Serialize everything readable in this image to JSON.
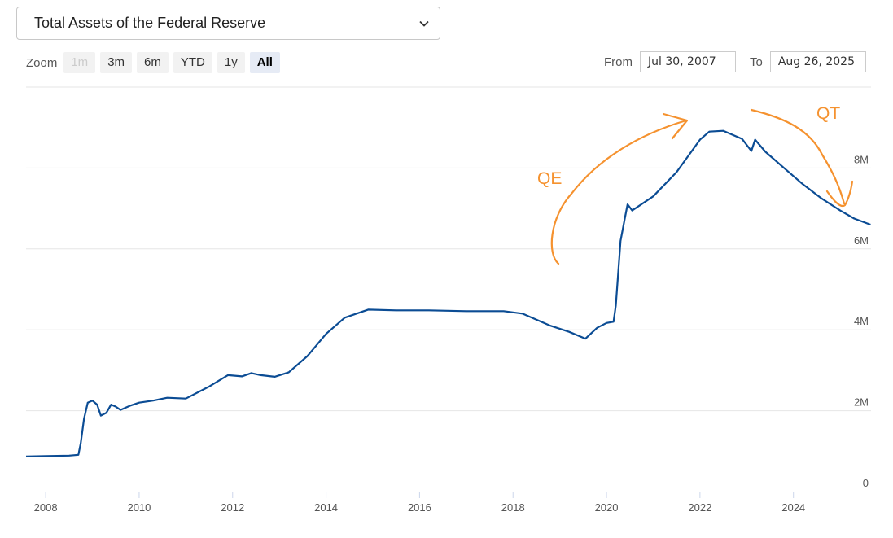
{
  "selector": {
    "value": "Total Assets of the Federal Reserve",
    "icon": "chevron-down-icon"
  },
  "zoom": {
    "label": "Zoom",
    "buttons": [
      {
        "label": "1m",
        "state": "disabled"
      },
      {
        "label": "3m",
        "state": "normal"
      },
      {
        "label": "6m",
        "state": "normal"
      },
      {
        "label": "YTD",
        "state": "normal"
      },
      {
        "label": "1y",
        "state": "normal"
      },
      {
        "label": "All",
        "state": "active"
      }
    ]
  },
  "range": {
    "from_label": "From",
    "from_value": "Jul 30, 2007",
    "to_label": "To",
    "to_value": "Aug 26, 2025"
  },
  "annotations": {
    "qe": "QE",
    "qt": "QT",
    "color": "#f5922f"
  },
  "chart_data": {
    "type": "line",
    "series": [
      {
        "color": "#0b4c94",
        "points": [
          [
            2007.58,
            0.87
          ],
          [
            2008.0,
            0.88
          ],
          [
            2008.5,
            0.89
          ],
          [
            2008.7,
            0.91
          ],
          [
            2008.75,
            1.2
          ],
          [
            2008.82,
            1.8
          ],
          [
            2008.9,
            2.2
          ],
          [
            2009.0,
            2.25
          ],
          [
            2009.1,
            2.15
          ],
          [
            2009.18,
            1.88
          ],
          [
            2009.3,
            1.95
          ],
          [
            2009.4,
            2.15
          ],
          [
            2009.5,
            2.1
          ],
          [
            2009.6,
            2.02
          ],
          [
            2009.8,
            2.12
          ],
          [
            2010.0,
            2.2
          ],
          [
            2010.3,
            2.25
          ],
          [
            2010.6,
            2.32
          ],
          [
            2011.0,
            2.3
          ],
          [
            2011.5,
            2.6
          ],
          [
            2011.9,
            2.88
          ],
          [
            2012.2,
            2.85
          ],
          [
            2012.4,
            2.93
          ],
          [
            2012.6,
            2.88
          ],
          [
            2012.9,
            2.84
          ],
          [
            2013.2,
            2.95
          ],
          [
            2013.6,
            3.35
          ],
          [
            2014.0,
            3.9
          ],
          [
            2014.4,
            4.3
          ],
          [
            2014.9,
            4.5
          ],
          [
            2015.5,
            4.48
          ],
          [
            2016.2,
            4.48
          ],
          [
            2017.0,
            4.46
          ],
          [
            2017.8,
            4.46
          ],
          [
            2018.2,
            4.4
          ],
          [
            2018.8,
            4.1
          ],
          [
            2019.2,
            3.95
          ],
          [
            2019.55,
            3.78
          ],
          [
            2019.8,
            4.05
          ],
          [
            2020.0,
            4.17
          ],
          [
            2020.15,
            4.2
          ],
          [
            2020.2,
            4.6
          ],
          [
            2020.25,
            5.4
          ],
          [
            2020.3,
            6.2
          ],
          [
            2020.4,
            6.8
          ],
          [
            2020.45,
            7.1
          ],
          [
            2020.55,
            6.95
          ],
          [
            2021.0,
            7.3
          ],
          [
            2021.5,
            7.9
          ],
          [
            2022.0,
            8.7
          ],
          [
            2022.2,
            8.9
          ],
          [
            2022.5,
            8.92
          ],
          [
            2022.9,
            8.72
          ],
          [
            2023.1,
            8.42
          ],
          [
            2023.18,
            8.7
          ],
          [
            2023.4,
            8.4
          ],
          [
            2023.8,
            8.0
          ],
          [
            2024.2,
            7.6
          ],
          [
            2024.6,
            7.25
          ],
          [
            2025.0,
            6.95
          ],
          [
            2025.3,
            6.75
          ],
          [
            2025.65,
            6.6
          ]
        ]
      }
    ],
    "xlim": [
      2007.58,
      2025.66
    ],
    "ylim": [
      0,
      10
    ],
    "yticks": [
      {
        "value": 0,
        "label": "0"
      },
      {
        "value": 2,
        "label": "2M"
      },
      {
        "value": 4,
        "label": "4M"
      },
      {
        "value": 6,
        "label": "6M"
      },
      {
        "value": 8,
        "label": "8M"
      }
    ],
    "xticks": [
      {
        "value": 2008,
        "label": "2008"
      },
      {
        "value": 2010,
        "label": "2010"
      },
      {
        "value": 2012,
        "label": "2012"
      },
      {
        "value": 2014,
        "label": "2014"
      },
      {
        "value": 2016,
        "label": "2016"
      },
      {
        "value": 2018,
        "label": "2018"
      },
      {
        "value": 2020,
        "label": "2020"
      },
      {
        "value": 2022,
        "label": "2022"
      },
      {
        "value": 2024,
        "label": "2024"
      }
    ],
    "grid": true,
    "legend": "none"
  }
}
